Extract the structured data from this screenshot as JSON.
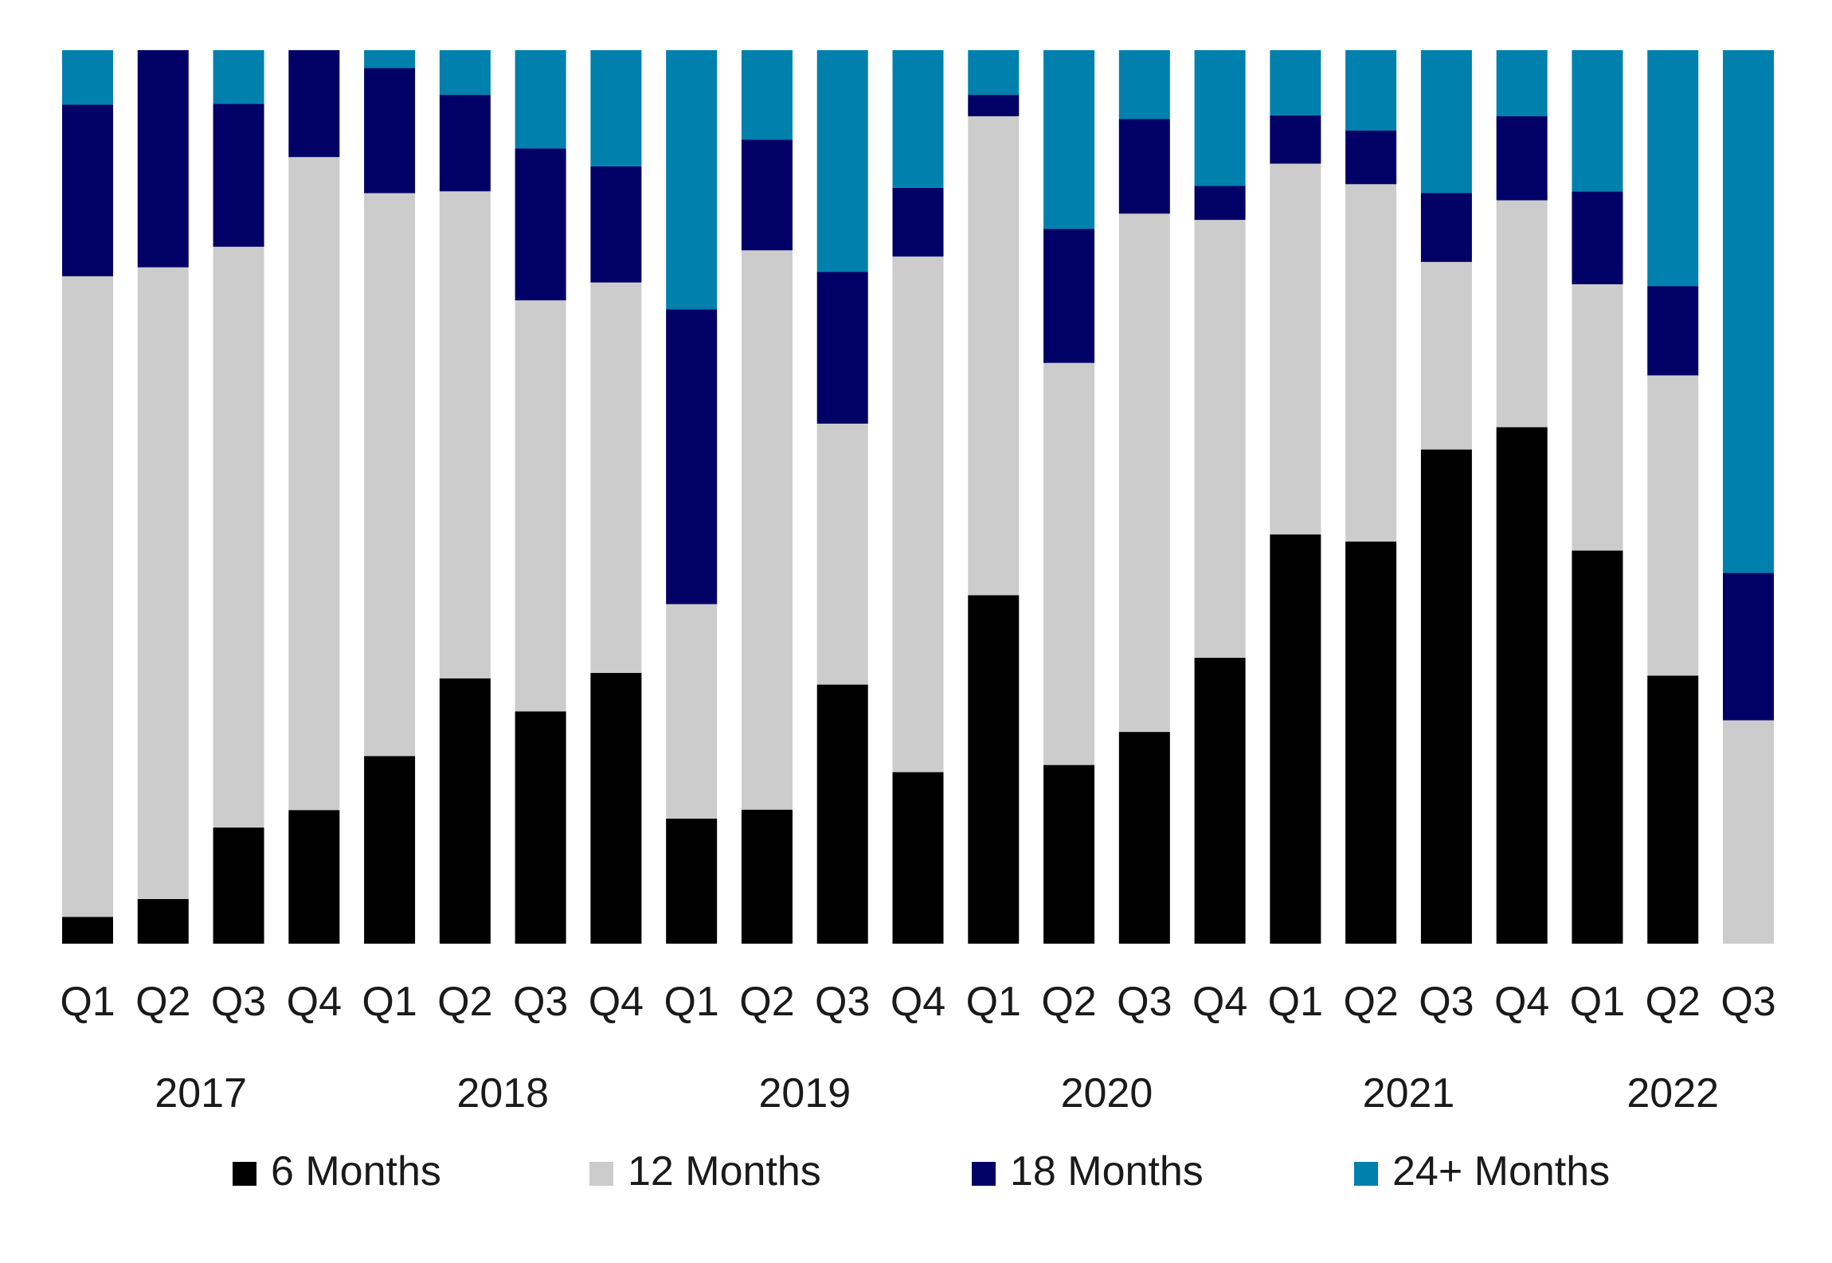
{
  "chart_data": {
    "type": "bar",
    "stacked": true,
    "normalized": true,
    "categories": [
      "Q1",
      "Q2",
      "Q3",
      "Q4",
      "Q1",
      "Q2",
      "Q3",
      "Q4",
      "Q1",
      "Q2",
      "Q3",
      "Q4",
      "Q1",
      "Q2",
      "Q3",
      "Q4",
      "Q1",
      "Q2",
      "Q3",
      "Q4",
      "Q1",
      "Q2",
      "Q3"
    ],
    "year_groups": [
      {
        "label": "2017",
        "start": 0,
        "end": 3
      },
      {
        "label": "2018",
        "start": 4,
        "end": 7
      },
      {
        "label": "2019",
        "start": 8,
        "end": 11
      },
      {
        "label": "2020",
        "start": 12,
        "end": 15
      },
      {
        "label": "2021",
        "start": 16,
        "end": 19
      },
      {
        "label": "2022",
        "start": 20,
        "end": 22
      }
    ],
    "series": [
      {
        "name": "6 Months",
        "color": "#000000",
        "values": [
          3,
          5,
          13,
          15,
          21,
          29.7,
          26,
          30.3,
          14,
          15,
          29,
          19.2,
          39,
          20,
          23.7,
          32,
          45.8,
          45,
          55.3,
          57.8,
          44,
          30,
          0
        ]
      },
      {
        "name": "12 Months",
        "color": "#cccccc",
        "values": [
          71.7,
          70.7,
          65,
          73.3,
          63,
          54.5,
          46,
          43.7,
          24,
          62.6,
          29.2,
          57.7,
          53.6,
          45,
          58,
          49,
          41.5,
          40,
          21,
          25.4,
          29.8,
          33.6,
          25
        ]
      },
      {
        "name": "18 Months",
        "color": "#000066",
        "values": [
          19.2,
          24.3,
          16,
          12,
          14,
          10.8,
          17,
          13,
          33,
          12.4,
          17,
          7.7,
          2.4,
          15,
          10.6,
          3.8,
          5.4,
          6,
          7.7,
          9.4,
          10.4,
          10,
          16.5
        ]
      },
      {
        "name": "24+ Months",
        "color": "#0080ad",
        "values": [
          6.1,
          0,
          6,
          0,
          2,
          5,
          11,
          13,
          29,
          10,
          24.8,
          15.4,
          5,
          20,
          7.7,
          15.2,
          7.3,
          9,
          16,
          7.4,
          15.8,
          26.4,
          58.5
        ]
      }
    ],
    "ylim": [
      0,
      100
    ],
    "legend": "bottom",
    "grid": false,
    "title": "",
    "xlabel": "",
    "ylabel": ""
  }
}
